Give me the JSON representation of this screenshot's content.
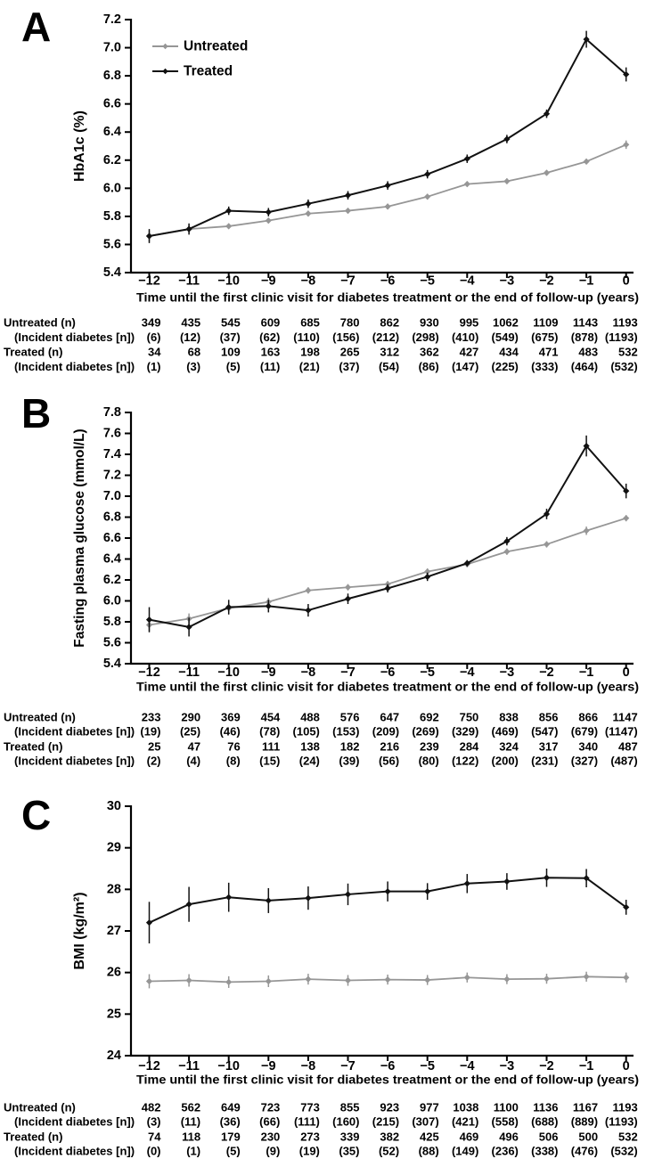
{
  "figure_title": "",
  "legend": {
    "untreated_label": "Untreated",
    "treated_label": "Treated"
  },
  "colors": {
    "untreated": "#969696",
    "treated": "#111111",
    "axis": "#000000",
    "background": "#ffffff"
  },
  "chart_data": [
    {
      "panel": "A",
      "type": "line",
      "ylabel": "HbA1c (%)",
      "xlabel": "Time until the first clinic visit for diabetes treatment or the end of follow-up  (years)",
      "ylim": [
        5.4,
        7.2
      ],
      "ytick_labels": [
        "5.4",
        "5.6",
        "5.8",
        "6.0",
        "6.2",
        "6.4",
        "6.6",
        "6.8",
        "7.0",
        "7.2"
      ],
      "x_labels": [
        "−12",
        "−11",
        "−10",
        "−9",
        "−8",
        "−7",
        "−6",
        "−5",
        "−4",
        "−3",
        "−2",
        "−1",
        "0"
      ],
      "legend_position": "top-left-inside",
      "grid": false,
      "series": [
        {
          "name": "Untreated",
          "color": "#969696",
          "values": [
            5.66,
            5.71,
            5.73,
            5.77,
            5.82,
            5.84,
            5.87,
            5.94,
            6.03,
            6.05,
            6.11,
            6.19,
            6.31
          ],
          "errors": [
            0.04,
            0.03,
            0.02,
            0.02,
            0.02,
            0.02,
            0.02,
            0.02,
            0.02,
            0.02,
            0.02,
            0.02,
            0.03
          ]
        },
        {
          "name": "Treated",
          "color": "#111111",
          "values": [
            5.66,
            5.71,
            5.84,
            5.83,
            5.89,
            5.95,
            6.02,
            6.1,
            6.21,
            6.35,
            6.53,
            7.06,
            6.81
          ],
          "errors": [
            0.05,
            0.04,
            0.03,
            0.03,
            0.03,
            0.03,
            0.03,
            0.03,
            0.03,
            0.03,
            0.03,
            0.06,
            0.05
          ]
        }
      ],
      "table": {
        "rows": [
          {
            "label": "Untreated (n)",
            "indent": false,
            "values": [
              "349",
              "435",
              "545",
              "609",
              "685",
              "780",
              "862",
              "930",
              "995",
              "1062",
              "1109",
              "1143",
              "1193"
            ]
          },
          {
            "label": "(Incident diabetes [n])",
            "indent": true,
            "values": [
              "(6)",
              "(12)",
              "(37)",
              "(62)",
              "(110)",
              "(156)",
              "(212)",
              "(298)",
              "(410)",
              "(549)",
              "(675)",
              "(878)",
              "(1193)"
            ]
          },
          {
            "label": "Treated (n)",
            "indent": false,
            "values": [
              "34",
              "68",
              "109",
              "163",
              "198",
              "265",
              "312",
              "362",
              "427",
              "434",
              "471",
              "483",
              "532"
            ]
          },
          {
            "label": "(Incident diabetes [n])",
            "indent": true,
            "values": [
              "(1)",
              "(3)",
              "(5)",
              "(11)",
              "(21)",
              "(37)",
              "(54)",
              "(86)",
              "(147)",
              "(225)",
              "(333)",
              "(464)",
              "(532)"
            ]
          }
        ]
      }
    },
    {
      "panel": "B",
      "type": "line",
      "ylabel": "Fasting plasma glucose (mmol/L)",
      "xlabel": "Time until the first clinic visit for diabetes treatment or the end of follow-up  (years)",
      "ylim": [
        5.4,
        7.8
      ],
      "ytick_labels": [
        "5.4",
        "5.6",
        "5.8",
        "6.0",
        "6.2",
        "6.4",
        "6.6",
        "6.8",
        "7.0",
        "7.2",
        "7.4",
        "7.6",
        "7.8"
      ],
      "x_labels": [
        "−12",
        "−11",
        "−10",
        "−9",
        "−8",
        "−7",
        "−6",
        "−5",
        "−4",
        "−3",
        "−2",
        "−1",
        "0"
      ],
      "legend_position": "none",
      "grid": false,
      "series": [
        {
          "name": "Untreated",
          "color": "#969696",
          "values": [
            5.77,
            5.83,
            5.93,
            5.99,
            6.1,
            6.13,
            6.16,
            6.28,
            6.35,
            6.47,
            6.54,
            6.67,
            6.79
          ],
          "errors": [
            0.06,
            0.05,
            0.04,
            0.04,
            0.03,
            0.03,
            0.03,
            0.03,
            0.03,
            0.03,
            0.03,
            0.04,
            0.03
          ]
        },
        {
          "name": "Treated",
          "color": "#111111",
          "values": [
            5.82,
            5.75,
            5.94,
            5.95,
            5.91,
            6.02,
            6.12,
            6.23,
            6.36,
            6.57,
            6.83,
            7.48,
            7.05
          ],
          "errors": [
            0.12,
            0.09,
            0.07,
            0.06,
            0.06,
            0.05,
            0.04,
            0.04,
            0.03,
            0.04,
            0.05,
            0.1,
            0.07
          ]
        }
      ],
      "table": {
        "rows": [
          {
            "label": "Untreated (n)",
            "indent": false,
            "values": [
              "233",
              "290",
              "369",
              "454",
              "488",
              "576",
              "647",
              "692",
              "750",
              "838",
              "856",
              "866",
              "1147"
            ]
          },
          {
            "label": "(Incident diabetes [n])",
            "indent": true,
            "values": [
              "(19)",
              "(25)",
              "(46)",
              "(78)",
              "(105)",
              "(153)",
              "(209)",
              "(269)",
              "(329)",
              "(469)",
              "(547)",
              "(679)",
              "(1147)"
            ]
          },
          {
            "label": "Treated (n)",
            "indent": false,
            "values": [
              "25",
              "47",
              "76",
              "111",
              "138",
              "182",
              "216",
              "239",
              "284",
              "324",
              "317",
              "340",
              "487"
            ]
          },
          {
            "label": "(Incident diabetes [n])",
            "indent": true,
            "values": [
              "(2)",
              "(4)",
              "(8)",
              "(15)",
              "(24)",
              "(39)",
              "(56)",
              "(80)",
              "(122)",
              "(200)",
              "(231)",
              "(327)",
              "(487)"
            ]
          }
        ]
      }
    },
    {
      "panel": "C",
      "type": "line",
      "ylabel": "BMI (kg/m²)",
      "xlabel": "Time until the first clinic visit for diabetes treatment or the end of follow-up  (years)",
      "ylim": [
        24,
        30
      ],
      "ytick_labels": [
        "24",
        "25",
        "26",
        "27",
        "28",
        "29",
        "30"
      ],
      "x_labels": [
        "−12",
        "−11",
        "−10",
        "−9",
        "−8",
        "−7",
        "−6",
        "−5",
        "−4",
        "−3",
        "−2",
        "−1",
        "0"
      ],
      "legend_position": "none",
      "grid": false,
      "series": [
        {
          "name": "Untreated",
          "color": "#969696",
          "values": [
            25.79,
            25.81,
            25.77,
            25.79,
            25.84,
            25.81,
            25.83,
            25.82,
            25.88,
            25.84,
            25.85,
            25.9,
            25.88
          ],
          "errors": [
            0.17,
            0.15,
            0.14,
            0.14,
            0.13,
            0.13,
            0.12,
            0.12,
            0.12,
            0.12,
            0.12,
            0.12,
            0.12
          ]
        },
        {
          "name": "Treated",
          "color": "#111111",
          "values": [
            27.2,
            27.64,
            27.81,
            27.73,
            27.79,
            27.88,
            27.95,
            27.95,
            28.14,
            28.19,
            28.28,
            28.27,
            27.57
          ],
          "errors": [
            0.5,
            0.42,
            0.35,
            0.3,
            0.28,
            0.26,
            0.24,
            0.2,
            0.23,
            0.2,
            0.22,
            0.22,
            0.18
          ]
        }
      ],
      "table": {
        "rows": [
          {
            "label": "Untreated (n)",
            "indent": false,
            "values": [
              "482",
              "562",
              "649",
              "723",
              "773",
              "855",
              "923",
              "977",
              "1038",
              "1100",
              "1136",
              "1167",
              "1193"
            ]
          },
          {
            "label": "(Incident diabetes [n])",
            "indent": true,
            "values": [
              "(3)",
              "(11)",
              "(36)",
              "(66)",
              "(111)",
              "(160)",
              "(215)",
              "(307)",
              "(421)",
              "(558)",
              "(688)",
              "(889)",
              "(1193)"
            ]
          },
          {
            "label": "Treated (n)",
            "indent": false,
            "values": [
              "74",
              "118",
              "179",
              "230",
              "273",
              "339",
              "382",
              "425",
              "469",
              "496",
              "506",
              "500",
              "532"
            ]
          },
          {
            "label": "(Incident diabetes [n])",
            "indent": true,
            "values": [
              "(0)",
              "(1)",
              "(5)",
              "(9)",
              "(19)",
              "(35)",
              "(52)",
              "(88)",
              "(149)",
              "(236)",
              "(338)",
              "(476)",
              "(532)"
            ]
          }
        ]
      }
    }
  ]
}
